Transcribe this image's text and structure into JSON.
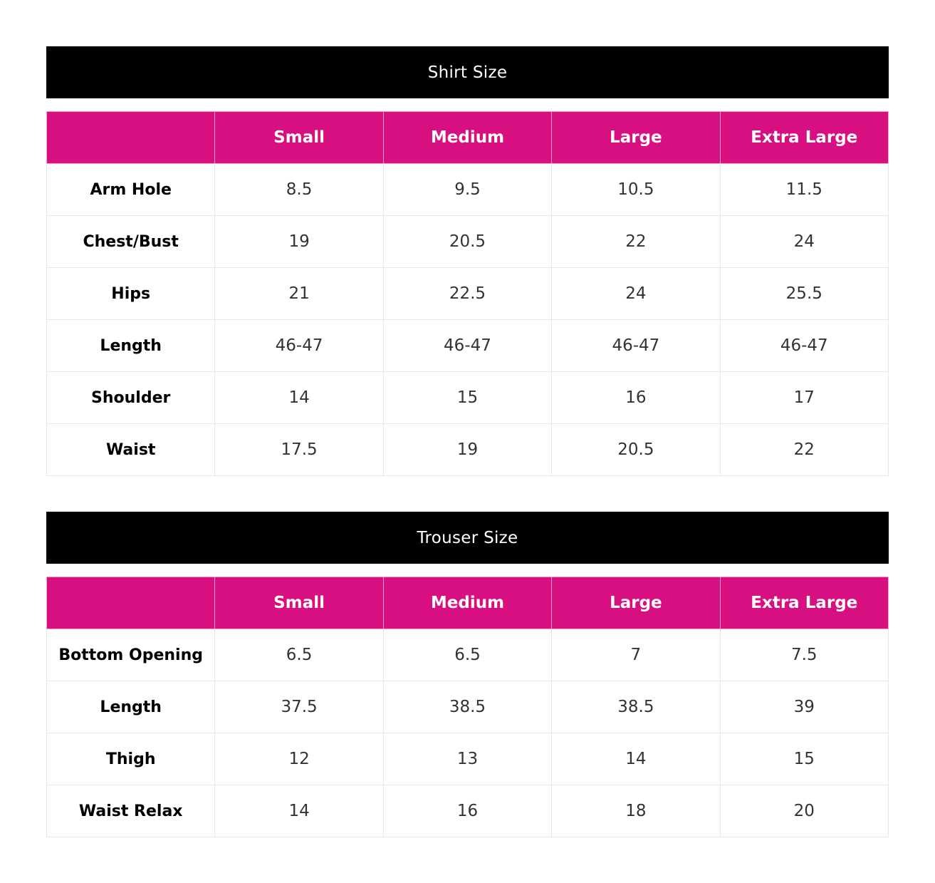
{
  "shirt": {
    "title": "Shirt Size",
    "columns": [
      "",
      "Small",
      "Medium",
      "Large",
      "Extra Large"
    ],
    "rows": [
      [
        "Arm Hole",
        "8.5",
        "9.5",
        "10.5",
        "11.5"
      ],
      [
        "Chest/Bust",
        "19",
        "20.5",
        "22",
        "24"
      ],
      [
        "Hips",
        "21",
        "22.5",
        "24",
        "25.5"
      ],
      [
        "Length",
        "46-47",
        "46-47",
        "46-47",
        "46-47"
      ],
      [
        "Shoulder",
        "14",
        "15",
        "16",
        "17"
      ],
      [
        "Waist",
        "17.5",
        "19",
        "20.5",
        "22"
      ]
    ]
  },
  "trouser": {
    "title": "Trouser Size",
    "columns": [
      "",
      "Small",
      "Medium",
      "Large",
      "Extra Large"
    ],
    "rows": [
      [
        "Bottom Opening",
        "6.5",
        "6.5",
        "7",
        "7.5"
      ],
      [
        "Length",
        "37.5",
        "38.5",
        "38.5",
        "39"
      ],
      [
        "Thigh",
        "12",
        "13",
        "14",
        "15"
      ],
      [
        "Waist Relax",
        "14",
        "16",
        "18",
        "20"
      ]
    ]
  },
  "colors": {
    "header_bg": "#d80f80",
    "title_bg": "#000000"
  }
}
